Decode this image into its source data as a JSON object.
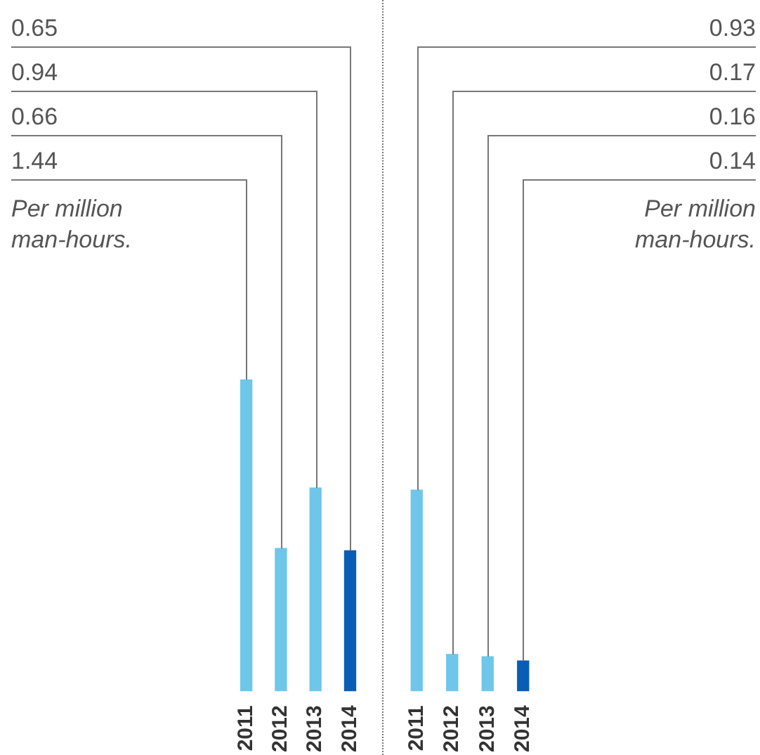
{
  "chart_data": [
    {
      "type": "bar",
      "categories": [
        "2011",
        "2012",
        "2013",
        "2014"
      ],
      "values": [
        1.44,
        0.66,
        0.94,
        0.65
      ],
      "value_labels": [
        "1.44",
        "0.66",
        "0.94",
        "0.65"
      ],
      "colors": [
        "#6ec6ea",
        "#6ec6ea",
        "#6ec6ea",
        "#0a5db4"
      ],
      "annotations": [
        "Per million man-hours."
      ]
    },
    {
      "type": "bar",
      "categories": [
        "2011",
        "2012",
        "2013",
        "2014"
      ],
      "values": [
        0.93,
        0.17,
        0.16,
        0.14
      ],
      "value_labels": [
        "0.93",
        "0.17",
        "0.16",
        "0.14"
      ],
      "colors": [
        "#6ec6ea",
        "#6ec6ea",
        "#6ec6ea",
        "#0a5db4"
      ],
      "annotations": [
        "Per million man-hours."
      ]
    }
  ]
}
